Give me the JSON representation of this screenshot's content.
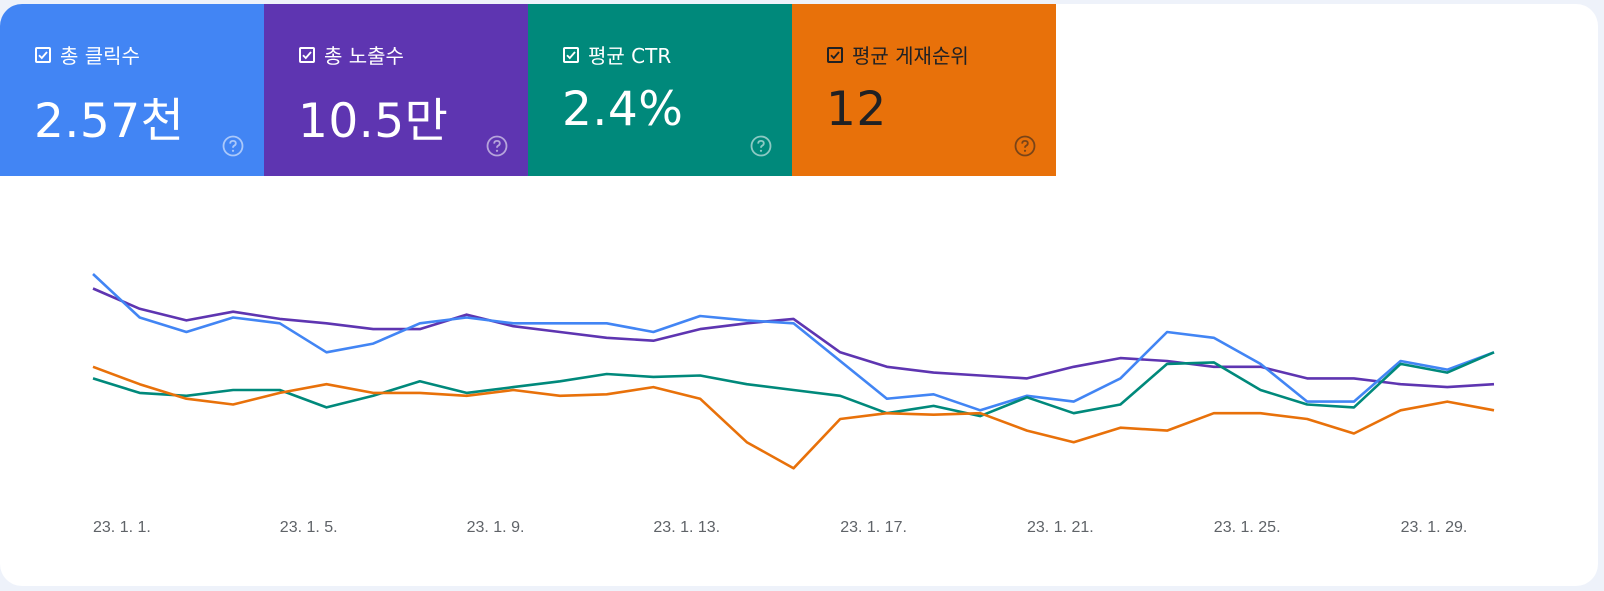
{
  "cards": [
    {
      "label": "총 클릭수",
      "value": "2.57천",
      "color": "#4285f4",
      "text_color": "#ffffff",
      "checked": true
    },
    {
      "label": "총 노출수",
      "value": "10.5만",
      "color": "#5e35b1",
      "text_color": "#ffffff",
      "checked": true
    },
    {
      "label": "평균 CTR",
      "value": "2.4%",
      "color": "#00897b",
      "text_color": "#ffffff",
      "checked": true
    },
    {
      "label": "평균 게재순위",
      "value": "12",
      "color": "#e8710a",
      "text_color": "#202124",
      "checked": true
    }
  ],
  "icons": {
    "checkbox": "checkbox-checked-icon",
    "help": "help-circle-icon"
  },
  "chart_data": {
    "type": "line",
    "x": [
      "23. 1. 1.",
      "23. 1. 2.",
      "23. 1. 3.",
      "23. 1. 4.",
      "23. 1. 5.",
      "23. 1. 6.",
      "23. 1. 7.",
      "23. 1. 8.",
      "23. 1. 9.",
      "23. 1. 10.",
      "23. 1. 11.",
      "23. 1. 12.",
      "23. 1. 13.",
      "23. 1. 14.",
      "23. 1. 15.",
      "23. 1. 16.",
      "23. 1. 17.",
      "23. 1. 18.",
      "23. 1. 19.",
      "23. 1. 20.",
      "23. 1. 21.",
      "23. 1. 22.",
      "23. 1. 23.",
      "23. 1. 24.",
      "23. 1. 25.",
      "23. 1. 26.",
      "23. 1. 27.",
      "23. 1. 28.",
      "23. 1. 29.",
      "23. 1. 30.",
      "23. 1. 31."
    ],
    "x_tick_labels": [
      "23. 1. 1.",
      "23. 1. 5.",
      "23. 1. 9.",
      "23. 1. 13.",
      "23. 1. 17.",
      "23. 1. 21.",
      "23. 1. 25.",
      "23. 1. 29."
    ],
    "x_tick_indices": [
      0,
      4,
      8,
      12,
      16,
      20,
      24,
      28
    ],
    "grid": false,
    "legend": "none",
    "series": [
      {
        "name": "총 노출수",
        "color": "#5e35b1",
        "values": [
          0.75,
          0.68,
          0.64,
          0.67,
          0.645,
          0.63,
          0.61,
          0.61,
          0.66,
          0.62,
          0.6,
          0.58,
          0.57,
          0.61,
          0.63,
          0.645,
          0.53,
          0.48,
          0.46,
          0.45,
          0.44,
          0.48,
          0.51,
          0.5,
          0.48,
          0.48,
          0.44,
          0.44,
          0.42,
          0.41,
          0.42
        ]
      },
      {
        "name": "총 클릭수",
        "color": "#4285f4",
        "values": [
          0.8,
          0.65,
          0.6,
          0.65,
          0.63,
          0.53,
          0.56,
          0.63,
          0.65,
          0.63,
          0.63,
          0.63,
          0.6,
          0.655,
          0.64,
          0.63,
          0.5,
          0.37,
          0.385,
          0.33,
          0.38,
          0.36,
          0.44,
          0.6,
          0.58,
          0.49,
          0.36,
          0.36,
          0.5,
          0.47,
          0.53
        ]
      },
      {
        "name": "평균 CTR",
        "color": "#00897b",
        "values": [
          0.44,
          0.39,
          0.38,
          0.4,
          0.4,
          0.34,
          0.38,
          0.43,
          0.39,
          0.41,
          0.43,
          0.455,
          0.445,
          0.45,
          0.42,
          0.4,
          0.38,
          0.32,
          0.345,
          0.31,
          0.375,
          0.32,
          0.35,
          0.49,
          0.495,
          0.4,
          0.35,
          0.34,
          0.49,
          0.46,
          0.53
        ]
      },
      {
        "name": "평균 게재순위",
        "color": "#e8710a",
        "values": [
          0.48,
          0.42,
          0.37,
          0.35,
          0.39,
          0.42,
          0.39,
          0.39,
          0.38,
          0.4,
          0.38,
          0.385,
          0.41,
          0.37,
          0.22,
          0.13,
          0.3,
          0.32,
          0.315,
          0.32,
          0.26,
          0.22,
          0.27,
          0.26,
          0.32,
          0.32,
          0.3,
          0.25,
          0.33,
          0.36,
          0.33
        ]
      }
    ]
  }
}
